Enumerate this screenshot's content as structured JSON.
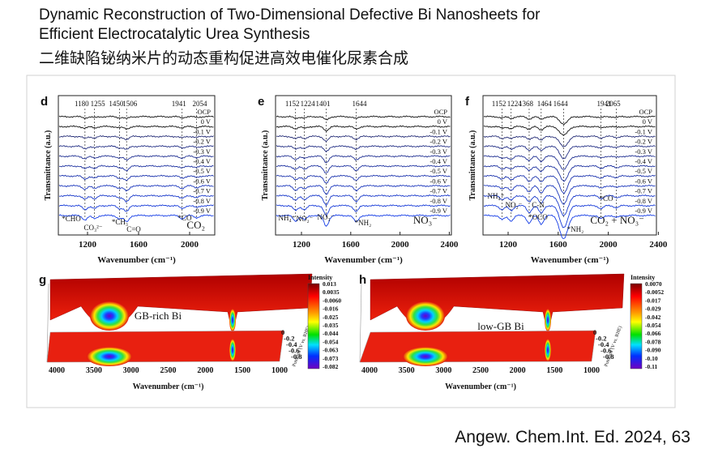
{
  "header": {
    "title_lines": [
      "Dynamic Reconstruction of Two-Dimensional Defective Bi Nanosheets for",
      "Efficient Electrocatalytic Urea Synthesis"
    ],
    "title_zh": "二维缺陷铋纳米片的动态重构促进高效电催化尿素合成"
  },
  "panels": [
    {
      "label": "d",
      "peaks": [
        "1180",
        "1255",
        "1450",
        "1506",
        "1941",
        "2054"
      ],
      "potentials": [
        "OCP",
        "0 V",
        "-0.1 V",
        "-0.2 V",
        "-0.3 V",
        "-0.4 V",
        "-0.5 V",
        "-0.6 V",
        "-0.7 V",
        "-0.8 V",
        "-0.9 V"
      ],
      "species": [
        "*CHO",
        "CO₃²⁻",
        "*CH₃",
        "C=O",
        "*CO"
      ],
      "legend": "CO₂",
      "x_ticks": [
        "1200",
        "1600",
        "2000"
      ],
      "x_label": "Wavenumber (cm⁻¹)",
      "y_label": "Transmittance (a.u.)"
    },
    {
      "label": "e",
      "peaks": [
        "1152",
        "1224",
        "1401",
        "1644"
      ],
      "potentials": [
        "OCP",
        "0 V",
        "-0.1 V",
        "-0.2 V",
        "-0.3 V",
        "-0.4 V",
        "-0.5 V",
        "-0.6 V",
        "-0.7 V",
        "-0.8 V",
        "-0.9 V"
      ],
      "species": [
        "NH₄⁺",
        "NO₂⁻",
        "NO₃⁻",
        "*NH₂"
      ],
      "legend": "NO₃⁻",
      "x_ticks": [
        "1200",
        "1600",
        "2000",
        "2400"
      ],
      "x_label": "Wavenumber (cm⁻¹)",
      "y_label": "Transmittance (a.u.)"
    },
    {
      "label": "f",
      "peaks": [
        "1152",
        "1224",
        "1368",
        "1464",
        "1644",
        "1941",
        "2065"
      ],
      "potentials": [
        "OCP",
        "0 V",
        "-0.1 V",
        "-0.2 V",
        "-0.3 V",
        "-0.4 V",
        "-0.5 V",
        "-0.6 V",
        "-0.7 V",
        "-0.8 V",
        "-0.9 V"
      ],
      "species": [
        "NH₄⁺",
        "NO₂⁻",
        "*OCO",
        "C-N",
        "*NH₂",
        "*CO"
      ],
      "legend": "CO₂ + NO₃⁻",
      "x_ticks": [
        "1200",
        "1600",
        "2000",
        "2400"
      ],
      "x_label": "Wavenumber (cm⁻¹)",
      "y_label": "Transmittance (a.u.)"
    }
  ],
  "maps": [
    {
      "label": "g",
      "name": "GB-rich Bi",
      "colorbar_title": "Intensity",
      "colorbar_ticks": [
        "0.013",
        "0.0035",
        "-0.0060",
        "-0.016",
        "-0.025",
        "-0.035",
        "-0.044",
        "-0.054",
        "-0.063",
        "-0.073",
        "-0.082"
      ],
      "x_ticks": [
        "4000",
        "3500",
        "3000",
        "2500",
        "2000",
        "1500",
        "1000"
      ],
      "x_label": "Wavenumber (cm⁻¹)",
      "y_ticks": [
        "0",
        "-0.2",
        "-0.4",
        "-0.6",
        "-0.8"
      ],
      "y_label": "Potential (V vs. RHE)"
    },
    {
      "label": "h",
      "name": "low-GB Bi",
      "colorbar_title": "Intensity",
      "colorbar_ticks": [
        "0.0070",
        "-0.0052",
        "-0.017",
        "-0.029",
        "-0.042",
        "-0.054",
        "-0.066",
        "-0.078",
        "-0.090",
        "-0.10",
        "-0.11"
      ],
      "x_ticks": [
        "4000",
        "3500",
        "3000",
        "2500",
        "2000",
        "1500",
        "1000"
      ],
      "x_label": "Wavenumber (cm⁻¹)",
      "y_ticks": [
        "0",
        "-0.2",
        "-0.4",
        "-0.6",
        "-0.8"
      ],
      "y_label": "Potential (V vs. RHE)"
    }
  ],
  "citation": "Angew. Chem.Int. Ed. 2024, 63"
}
